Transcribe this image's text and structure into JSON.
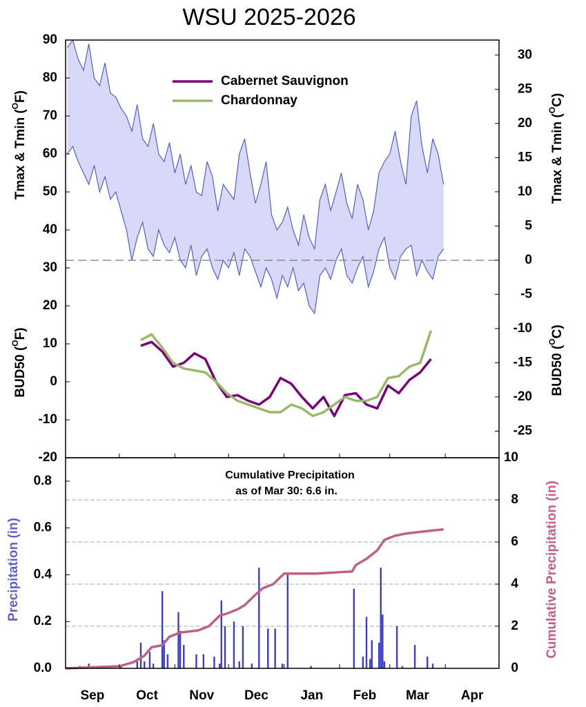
{
  "chart_data": [
    {
      "type": "line",
      "title": "WSU 2025-2026",
      "y_label": [
        "Tmax & Tmin (",
        "O",
        "F)"
      ],
      "y_label_lower": [
        "BUD50 (",
        "O",
        "F)"
      ],
      "y2_label": [
        "Tmax & Tmin (",
        "O",
        "C)"
      ],
      "y2_label_lower": [
        "BUD50 (",
        "O",
        "C)"
      ],
      "xlim": [
        0,
        242
      ],
      "ylim": [
        -20,
        90
      ],
      "yticks": [
        -20,
        -10,
        0,
        10,
        20,
        30,
        40,
        50,
        60,
        70,
        80,
        90
      ],
      "y2lim": [
        -28.9,
        32.2
      ],
      "y2ticks": [
        -25,
        -20,
        -15,
        -10,
        -5,
        0,
        5,
        10,
        15,
        20,
        25,
        30
      ],
      "reference_line": 32,
      "band": {
        "color": "#5060c8",
        "fill": "#d8d8f8",
        "x": [
          1,
          4,
          7,
          10,
          13,
          16,
          19,
          22,
          25,
          28,
          31,
          34,
          37,
          40,
          43,
          46,
          49,
          52,
          55,
          58,
          61,
          64,
          67,
          70,
          73,
          76,
          79,
          82,
          85,
          88,
          91,
          94,
          97,
          100,
          103,
          106,
          109,
          112,
          115,
          118,
          121,
          124,
          127,
          130,
          133,
          136,
          139,
          142,
          145,
          148,
          151,
          154,
          157,
          160,
          163,
          166,
          169,
          172,
          175,
          178,
          181,
          184,
          187,
          190,
          193,
          196,
          199,
          202,
          205,
          208,
          211
        ],
        "upper": [
          88,
          90,
          85,
          82,
          89,
          80,
          78,
          84,
          76,
          75,
          72,
          70,
          66,
          73,
          64,
          62,
          68,
          60,
          58,
          63,
          55,
          60,
          52,
          57,
          50,
          49,
          58,
          54,
          45,
          52,
          50,
          48,
          60,
          64,
          55,
          47,
          52,
          58,
          44,
          40,
          42,
          46,
          40,
          36,
          44,
          38,
          35,
          48,
          52,
          45,
          50,
          55,
          47,
          43,
          52,
          48,
          40,
          45,
          55,
          58,
          60,
          66,
          58,
          52,
          70,
          74,
          62,
          55,
          64,
          60,
          52
        ],
        "lower": [
          60,
          62,
          58,
          55,
          52,
          57,
          50,
          54,
          48,
          50,
          45,
          40,
          32,
          38,
          42,
          35,
          33,
          40,
          36,
          34,
          38,
          32,
          30,
          36,
          28,
          33,
          35,
          30,
          27,
          32,
          30,
          34,
          28,
          35,
          33,
          29,
          25,
          30,
          27,
          22,
          28,
          25,
          30,
          24,
          26,
          20,
          18,
          28,
          30,
          27,
          32,
          35,
          28,
          26,
          30,
          33,
          25,
          29,
          35,
          38,
          30,
          27,
          33,
          35,
          36,
          28,
          32,
          29,
          27,
          33,
          35
        ]
      },
      "legend": "top-center",
      "series": [
        {
          "name": "Cabernet Sauvignon",
          "color": "#7a007a",
          "x": [
            42,
            48,
            54,
            60,
            66,
            72,
            78,
            84,
            90,
            96,
            102,
            108,
            114,
            120,
            126,
            132,
            138,
            144,
            150,
            156,
            162,
            168,
            174,
            180,
            186,
            192,
            198,
            204
          ],
          "values": [
            9.5,
            10.5,
            8,
            4,
            5,
            7.5,
            6,
            0,
            -4,
            -3.5,
            -5,
            -6,
            -4,
            1,
            -0.5,
            -4,
            -7,
            -4,
            -9,
            -3.5,
            -3,
            -6,
            -7,
            -1,
            -3,
            0.5,
            2.5,
            6
          ]
        },
        {
          "name": "Chardonnay",
          "color": "#9ab86a",
          "x": [
            42,
            48,
            54,
            60,
            66,
            72,
            78,
            84,
            90,
            96,
            102,
            108,
            114,
            120,
            126,
            132,
            138,
            144,
            150,
            156,
            162,
            168,
            174,
            180,
            186,
            192,
            198,
            204
          ],
          "values": [
            11,
            12.5,
            9,
            5,
            3.5,
            3,
            2.5,
            0,
            -3,
            -5,
            -6,
            -7,
            -8,
            -8,
            -6,
            -7,
            -9,
            -8,
            -6,
            -4,
            -5,
            -5,
            -4,
            1,
            1.5,
            4,
            5,
            13.5
          ]
        }
      ]
    },
    {
      "type": "bar",
      "y_label": "Precipitation (in)",
      "y2_label": "Cumulative Precipitation (in)",
      "annotation": [
        "Cumulative Precipitation",
        "as of Mar 30:  6.6 in."
      ],
      "xlim": [
        0,
        242
      ],
      "xticks": [
        {
          "value": 15,
          "label": "Sep"
        },
        {
          "value": 45.5,
          "label": "Oct"
        },
        {
          "value": 76,
          "label": "Nov"
        },
        {
          "value": 106.5,
          "label": "Dec"
        },
        {
          "value": 137.5,
          "label": "Jan"
        },
        {
          "value": 167,
          "label": "Feb"
        },
        {
          "value": 196.5,
          "label": "Mar"
        },
        {
          "value": 227,
          "label": "Apr"
        }
      ],
      "month_boundaries": [
        0,
        30,
        61,
        91,
        122,
        153,
        181,
        212,
        242
      ],
      "ylim": [
        0,
        0.9
      ],
      "yticks": [
        {
          "value": 0,
          "label": "0.0"
        },
        0.2,
        0.4,
        0.6,
        0.8
      ],
      "y2lim": [
        0,
        10
      ],
      "y2ticks": [
        0,
        2,
        4,
        6,
        8,
        10
      ],
      "grid": "y2",
      "bars": {
        "color": "#3c3cc8",
        "x": [
          8,
          13,
          20,
          31,
          40,
          42,
          44,
          47,
          49,
          54,
          55,
          57,
          63,
          64,
          66,
          73,
          77,
          83,
          86,
          87,
          89,
          94,
          97,
          99,
          104,
          108,
          113,
          117,
          121,
          124,
          137,
          161,
          166,
          168,
          170,
          171,
          175,
          176,
          177,
          178,
          185,
          188,
          195,
          202,
          205
        ],
        "values": [
          0.01,
          0.02,
          0.01,
          0.01,
          0.03,
          0.11,
          0.03,
          0.07,
          0.02,
          0.33,
          0.12,
          0.06,
          0.24,
          0.16,
          0.1,
          0.06,
          0.06,
          0.05,
          0.02,
          0.29,
          0.18,
          0.2,
          0.03,
          0.18,
          0.02,
          0.43,
          0.17,
          0.17,
          0.02,
          0.41,
          0.01,
          0.34,
          0.05,
          0.22,
          0.04,
          0.12,
          0.11,
          0.43,
          0.23,
          0.03,
          0.18,
          0.01,
          0.1,
          0.05,
          0.02
        ]
      },
      "cumulative": {
        "color": "#c06080",
        "axis": "y2",
        "x": [
          0,
          30,
          38,
          44,
          48,
          54,
          58,
          64,
          74,
          80,
          86,
          90,
          96,
          100,
          106,
          110,
          116,
          122,
          140,
          160,
          162,
          168,
          174,
          178,
          184,
          190,
          200,
          211
        ],
        "values": [
          0,
          0.1,
          0.3,
          0.6,
          1.0,
          1.1,
          1.5,
          1.7,
          1.8,
          2.0,
          2.5,
          2.6,
          2.8,
          3.0,
          3.5,
          3.8,
          4.0,
          4.5,
          4.5,
          4.6,
          4.9,
          5.2,
          5.6,
          6.1,
          6.3,
          6.4,
          6.5,
          6.6
        ]
      }
    }
  ]
}
